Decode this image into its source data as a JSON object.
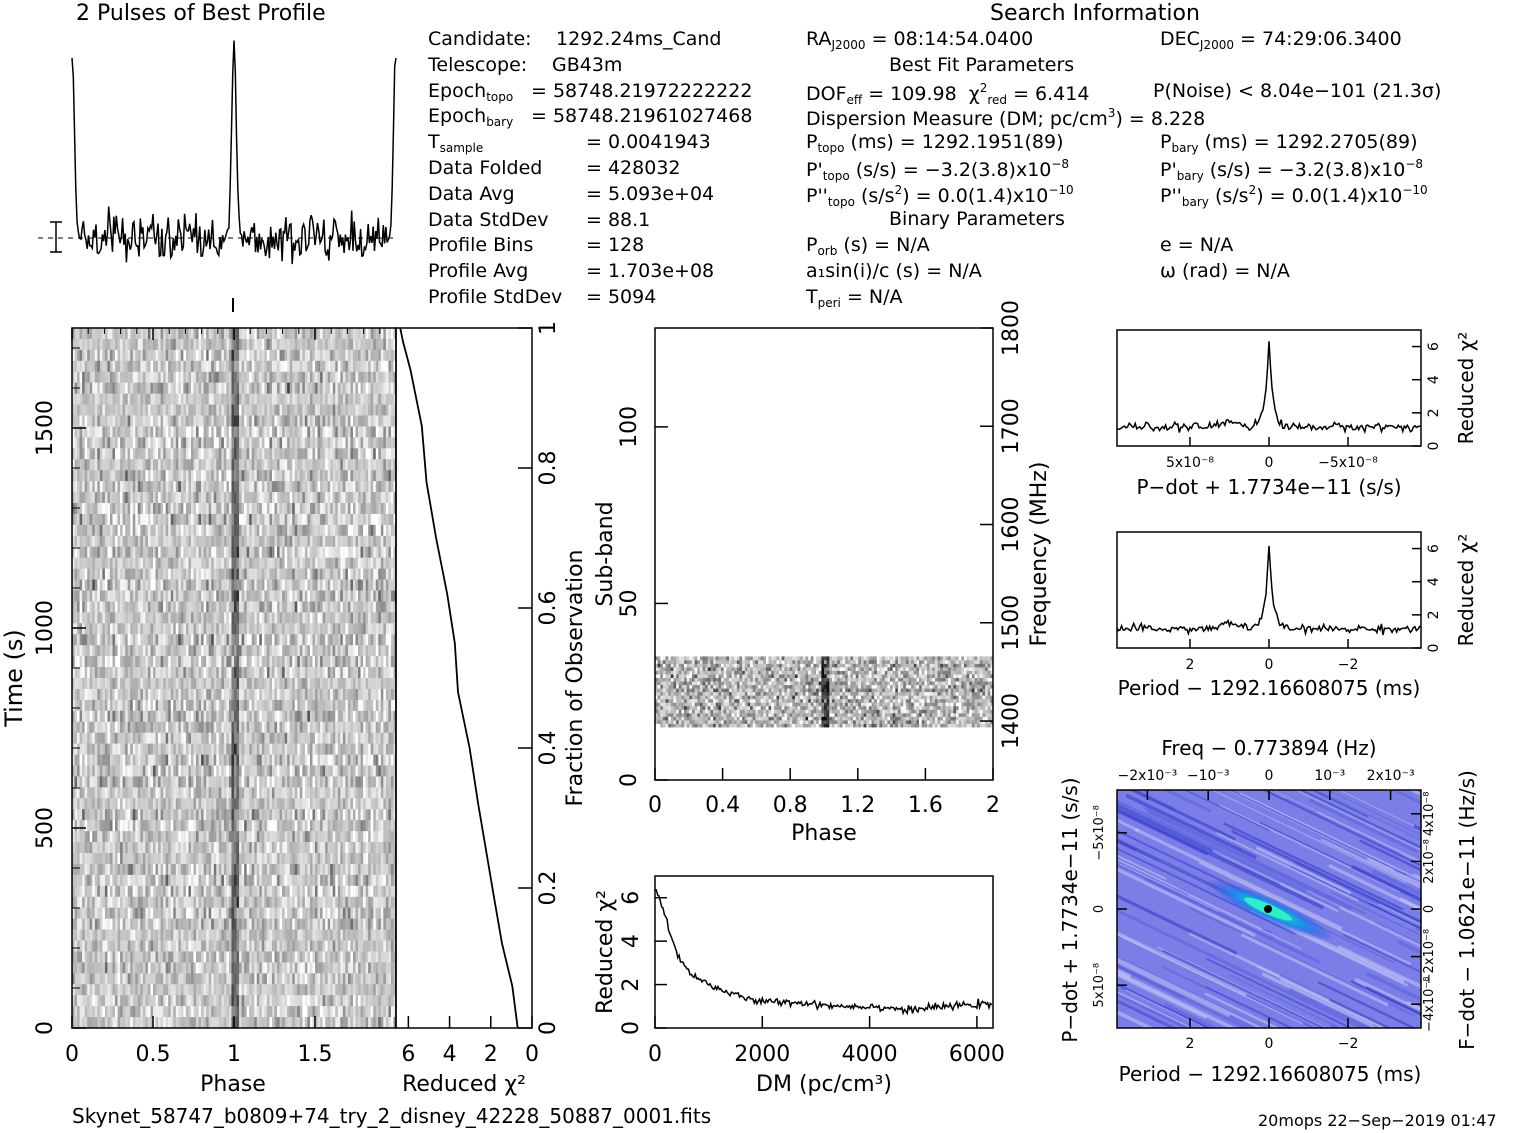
{
  "colors": {
    "ink": "#000000",
    "plane_bg": "#7b7ee6",
    "plane_peak": "#2ef0c8"
  },
  "titles": {
    "profile": "2 Pulses of Best Profile",
    "search": "Search Information",
    "best_fit": "Best Fit Parameters",
    "binary": "Binary Parameters"
  },
  "candidate_info": [
    {
      "label": "Candidate:",
      "value": "1292.24ms_Cand"
    },
    {
      "label": "Telescope:",
      "value": "GB43m"
    },
    {
      "label": "Epoch",
      "sub": "topo",
      "value": "= 58748.21972222222"
    },
    {
      "label": "Epoch",
      "sub": "bary",
      "value": "= 58748.21961027468"
    },
    {
      "label": "T",
      "sub": "sample",
      "value": "=   0.0041943"
    },
    {
      "label": "Data Folded",
      "value": "=   428032"
    },
    {
      "label": "Data Avg",
      "value": "=   5.093e+04"
    },
    {
      "label": "Data StdDev",
      "value": "=   88.1"
    },
    {
      "label": "Profile Bins",
      "value": "=   128"
    },
    {
      "label": "Profile Avg",
      "value": "=   1.703e+08"
    },
    {
      "label": "Profile StdDev",
      "value": "=   5094"
    }
  ],
  "search_info": {
    "ra": "= 08:14:54.0400",
    "dec": "= 74:29:06.3400",
    "dof": "= 109.98",
    "chi2_red": "= 6.414",
    "pnoise": "P(Noise) < 8.04e−101   (21.3σ)",
    "dm": "Dispersion Measure (DM; pc/cm",
    "dm_value": ") = 8.228",
    "p_topo": "(ms) =   1292.1951(89)",
    "p_bary": "(ms) =   1292.2705(89)",
    "pd_topo": "(s/s) = −3.2(3.8)x10",
    "pd_bary": "(s/s) = −3.2(3.8)x10",
    "pd_exp": "−8",
    "pdd_topo": "(s/s",
    "pdd_rest": ") = 0.0(1.4)x10",
    "pdd_exp": "−10",
    "porb": "(s) = N/A",
    "asini": "a₁sin(i)/c (s) = N/A",
    "tperi": "= N/A",
    "ecc": "e = N/A",
    "omega": "ω (rad) = N/A"
  },
  "footer": {
    "filename": "Skynet_58747_b0809+74_try_2_disney_42228_50887_0001.fits",
    "stamp": "20mops 22−Sep−2019 01:47"
  },
  "chart_data": [
    {
      "type": "line",
      "name": "profile",
      "x": [
        0,
        1,
        2
      ],
      "peaks_at_phase": [
        0,
        1,
        2
      ],
      "values": "two pulses, peak ~8.2 sigma above baseline"
    },
    {
      "type": "heatmap",
      "name": "time-phase",
      "xlabel": "Phase",
      "ylabel": "Time (s)",
      "xlim": [
        0,
        2
      ],
      "ylim": [
        0,
        1750
      ],
      "xticks": [
        "0",
        "0.5",
        "1",
        "1.5"
      ],
      "yticks": [
        "0",
        "500",
        "1000",
        "1500"
      ],
      "pulse_phase": 1.0
    },
    {
      "type": "line",
      "name": "chi2-vs-fraction",
      "xlabel": "Reduced χ²",
      "ylabel": "Fraction of Observation",
      "xlim": [
        6.6,
        0
      ],
      "ylim": [
        0,
        1
      ],
      "xticks": [
        "6",
        "4",
        "2",
        "0"
      ],
      "yticks": [
        "0",
        "0.2",
        "0.4",
        "0.6",
        "0.8",
        "1"
      ],
      "x": [
        0.6,
        1.0,
        1.4,
        1.8,
        2.3,
        2.7,
        3.1,
        3.5,
        3.8,
        4.2,
        4.6,
        5.0,
        5.4,
        5.9,
        6.3,
        6.4
      ],
      "y": [
        0,
        0.06,
        0.12,
        0.18,
        0.25,
        0.32,
        0.4,
        0.48,
        0.55,
        0.62,
        0.7,
        0.78,
        0.86,
        0.94,
        0.98,
        1.0
      ]
    },
    {
      "type": "heatmap",
      "name": "subband-phase",
      "xlabel": "Phase",
      "ylabel": "Sub-band",
      "y2label": "Frequency (MHz)",
      "xlim": [
        0,
        2
      ],
      "ylim": [
        0,
        128
      ],
      "y2lim": [
        1340,
        1800
      ],
      "xticks": [
        "0",
        "0.4",
        "0.8",
        "1.2",
        "1.6",
        "2"
      ],
      "yticks": [
        "0",
        "50",
        "100"
      ],
      "y2ticks": [
        "1400",
        "1500",
        "1600",
        "1700",
        "1800"
      ],
      "active_subbands": [
        15,
        35
      ],
      "pulse_phase": 1.0
    },
    {
      "type": "line",
      "name": "dm-chi2",
      "xlabel": "DM (pc/cm³)",
      "ylabel": "Reduced χ²",
      "xlim": [
        0,
        6300
      ],
      "ylim": [
        0,
        7
      ],
      "xticks": [
        "0",
        "2000",
        "4000",
        "6000"
      ],
      "yticks": [
        "0",
        "2",
        "4",
        "6"
      ],
      "x": [
        0,
        100,
        200,
        300,
        400,
        500,
        600,
        800,
        1000,
        1200,
        1500,
        1800,
        2000,
        2500,
        3000,
        3500,
        4000,
        4500,
        4700,
        5000,
        5500,
        6000,
        6300
      ],
      "y": [
        6.4,
        5.9,
        5.1,
        4.2,
        3.5,
        3.0,
        2.7,
        2.3,
        2.0,
        1.8,
        1.5,
        1.3,
        1.2,
        1.2,
        1.1,
        1.0,
        1.0,
        0.9,
        0.8,
        0.9,
        1.0,
        1.1,
        1.0
      ]
    },
    {
      "type": "line",
      "name": "pdot-chi2",
      "xlabel": "P−dot + 1.7734e−11 (s/s)",
      "ylabel": "Reduced χ²",
      "xlim": [
        8.5e-08,
        -8.5e-08
      ],
      "ylim": [
        0,
        7
      ],
      "xticks": [
        "5x10⁻⁸",
        "0",
        "−5x10⁻⁸"
      ],
      "yticks": [
        "0",
        "2",
        "4",
        "6"
      ],
      "peak": 6.4
    },
    {
      "type": "line",
      "name": "period-chi2",
      "xlabel": "Period − 1292.16608075 (ms)",
      "ylabel": "Reduced χ²",
      "xlim": [
        3.5,
        -3.5
      ],
      "ylim": [
        0,
        7
      ],
      "xticks": [
        "2",
        "0",
        "−2"
      ],
      "yticks": [
        "0",
        "2",
        "4",
        "6"
      ],
      "peak": 6.4
    },
    {
      "type": "heatmap",
      "name": "period-pdot",
      "xlabel": "Period − 1292.16608075 (ms)",
      "ylabel": "P−dot + 1.7734e−11 (s/s)",
      "x2label": "Freq − 0.773894 (Hz)",
      "y2label": "F−dot − 1.0621e−11 (Hz/s)",
      "xticks": [
        "2",
        "0",
        "−2"
      ],
      "yticks": [
        "−5x10⁻⁸",
        "0",
        "5x10⁻⁸"
      ],
      "x2ticks": [
        "−2x10⁻³",
        "−10⁻³",
        "0",
        "10⁻³",
        "2x10⁻³"
      ],
      "y2ticks": [
        "4x10⁻⁸",
        "2x10⁻⁸",
        "0",
        "−2x10⁻⁸",
        "−4x10⁻⁸"
      ]
    }
  ]
}
